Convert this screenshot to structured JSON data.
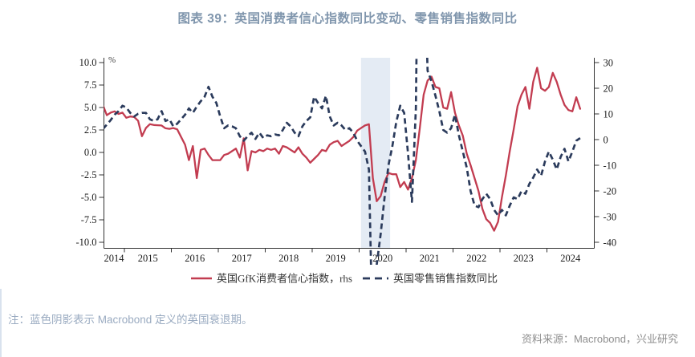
{
  "title": {
    "text": "图表 39：英国消费者信心指数同比变动、零售销售指数同比",
    "color": "#8096AD"
  },
  "note": {
    "text": "注：蓝色阴影表示 Macrobond 定义的英国衰退期。",
    "color": "#9AABC1"
  },
  "source": {
    "text": "资料来源：Macrobond，兴业研究",
    "color": "#8E8E8E"
  },
  "chart_data": {
    "type": "line",
    "unit_label": "%",
    "axis_color": "#333333",
    "left_axis": {
      "min": -10,
      "max": 10,
      "ticks": [
        10.0,
        7.5,
        5.0,
        2.5,
        0.0,
        -2.5,
        -5.0,
        -7.5,
        -10.0
      ],
      "tick_labels": [
        "10.0",
        "7.5",
        "5.0",
        "2.5",
        "0.0",
        "-2.5",
        "-5.0",
        "-7.5",
        "-10.0"
      ]
    },
    "right_axis": {
      "min": -40,
      "max": 30,
      "ticks": [
        30,
        20,
        10,
        0,
        -10,
        -20,
        -30,
        -40
      ],
      "tick_labels": [
        "30",
        "20",
        "10",
        "0",
        "-10",
        "-20",
        "-30",
        "-40"
      ]
    },
    "x_axis": {
      "year_labels": [
        "2014",
        "2015",
        "2016",
        "2017",
        "2018",
        "2019",
        "2020",
        "2021",
        "2022",
        "2023",
        "2024"
      ],
      "tick_years": [
        2015,
        2016,
        2017,
        2018,
        2019,
        2020,
        2021,
        2022,
        2023,
        2024
      ]
    },
    "recession_shading": {
      "start": 2020.04,
      "end": 2020.66,
      "color": "#E4EBF4"
    },
    "series": [
      {
        "name": "英国GfK消费者信心指数，rhs",
        "axis": "right",
        "style": "solid",
        "color": "#C23C50",
        "start": "2014-07",
        "values": [
          13.5,
          9.5,
          10.5,
          11.0,
          10.0,
          10.5,
          8.5,
          9.0,
          8.8,
          7.3,
          1.3,
          4.5,
          6.0,
          5.7,
          5.6,
          5.5,
          4.4,
          4.2,
          4.5,
          4.0,
          1.0,
          -2.0,
          -8.0,
          -2.5,
          -15.0,
          -4.0,
          -3.5,
          -6.0,
          -8.0,
          -8.0,
          -8.0,
          -6.0,
          -5.5,
          -4.5,
          -3.5,
          -7.0,
          0.5,
          -12.0,
          -4.5,
          -5.0,
          -4.0,
          -4.5,
          -3.5,
          -4.0,
          -3.5,
          -5.5,
          -2.5,
          -3.0,
          -4.0,
          -5.0,
          -3.0,
          -5.5,
          -7.0,
          -9.0,
          -7.5,
          -6.0,
          -4.0,
          -4.5,
          -2.0,
          -1.0,
          -0.5,
          -2.5,
          -1.5,
          -0.5,
          1.0,
          3.5,
          4.5,
          5.5,
          6.0,
          -15.0,
          -24.0,
          -22.0,
          -16.5,
          -13.0,
          -13.5,
          -13.5,
          -18.5,
          -16.5,
          -19.5,
          -15.0,
          -8.0,
          4.5,
          17.5,
          23.0,
          24.5,
          20.5,
          20.0,
          12.5,
          12.0,
          18.5,
          10.5,
          5.5,
          1.5,
          -5.5,
          -10.0,
          -15.0,
          -20.0,
          -27.0,
          -31.0,
          -32.5,
          -35.5,
          -32.0,
          -22.5,
          -14.0,
          -4.5,
          4.0,
          13.0,
          17.5,
          20.5,
          12.0,
          22.5,
          28.0,
          20.0,
          19.0,
          20.5,
          26.0,
          22.5,
          17.5,
          13.5,
          11.5,
          11.0,
          16.5,
          12.0
        ]
      },
      {
        "name": "英国零售销售指数同比",
        "axis": "left",
        "style": "dashed",
        "color": "#2B3B5C",
        "start": "2014-07",
        "values": [
          2.6,
          3.1,
          3.6,
          4.2,
          4.6,
          5.2,
          5.0,
          4.4,
          4.0,
          4.3,
          4.4,
          4.4,
          3.7,
          3.5,
          3.7,
          4.6,
          3.5,
          3.7,
          2.9,
          3.2,
          3.7,
          4.2,
          4.9,
          4.4,
          5.1,
          5.7,
          6.2,
          7.3,
          6.2,
          5.5,
          4.0,
          2.7,
          3.0,
          2.9,
          2.7,
          1.8,
          1.3,
          1.8,
          2.2,
          1.5,
          2.2,
          1.6,
          1.9,
          1.8,
          2.0,
          1.9,
          2.5,
          3.3,
          2.9,
          2.2,
          1.8,
          2.9,
          3.5,
          3.9,
          6.2,
          5.5,
          4.9,
          6.3,
          4.0,
          3.0,
          3.3,
          3.0,
          2.5,
          2.7,
          2.2,
          1.3,
          0.7,
          0.1,
          -1.9,
          -22.0,
          -12.5,
          -9.1,
          -5.0,
          -1.4,
          0.7,
          3.4,
          5.2,
          4.4,
          -0.1,
          -5.5,
          4.9,
          42.0,
          24.0,
          9.1,
          7.9,
          6.3,
          4.6,
          2.5,
          2.2,
          2.7,
          4.2,
          1.9,
          0.1,
          -1.7,
          -4.3,
          -5.9,
          -6.1,
          -5.2,
          -4.6,
          -5.2,
          -6.4,
          -7.0,
          -6.4,
          -7.0,
          -5.9,
          -5.0,
          -5.2,
          -4.3,
          -4.6,
          -3.5,
          -2.8,
          -1.9,
          -2.6,
          -1.0,
          0.1,
          -0.8,
          -1.9,
          -0.5,
          0.4,
          -1.0,
          0.1,
          1.3,
          1.6
        ]
      }
    ]
  }
}
